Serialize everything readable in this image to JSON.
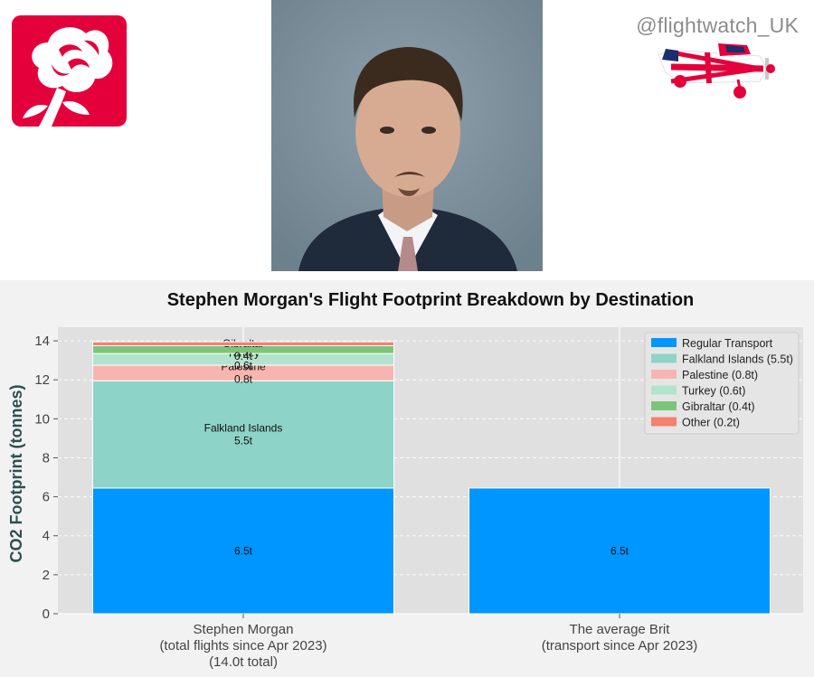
{
  "header": {
    "handle": "@flightwatch_UK",
    "logo_icon": "red-rose-icon",
    "plane_icon": "union-jack-plane-icon",
    "portrait_icon": "mp-portrait-photo"
  },
  "colors": {
    "regular_transport": "#0096ff",
    "falkland": "#8ed3c7",
    "palestine": "#f8b5b0",
    "turkey": "#b3e3cc",
    "gibraltar": "#7cc47a",
    "other": "#f4806e",
    "plot_bg": "#e0e0e0",
    "page_bg": "#f2f2f2",
    "brand_red": "#e4003b"
  },
  "chart_data": {
    "type": "bar",
    "stacked": true,
    "title": "Stephen Morgan's Flight Footprint Breakdown by Destination",
    "xlabel": "",
    "ylabel": "CO2 Footprint (tonnes)",
    "ylim": [
      0,
      14.7
    ],
    "yticks": [
      "0",
      "2",
      "4",
      "6",
      "8",
      "10",
      "12",
      "14"
    ],
    "grid": true,
    "legend_position": "top-right",
    "categories": [
      [
        "Stephen Morgan",
        "(total flights since Apr 2023)",
        "(14.0t total)"
      ],
      [
        "The average Brit",
        "(transport since Apr 2023)"
      ]
    ],
    "series": [
      {
        "name": "Regular Transport",
        "legend": "Regular Transport",
        "values": [
          6.45,
          6.45
        ],
        "labels": [
          "6.5t",
          "6.5t"
        ]
      },
      {
        "name": "Falkland Islands",
        "legend": "Falkland Islands (5.5t)",
        "values": [
          5.5,
          0
        ],
        "labels": [
          "Falkland Islands\n5.5t",
          ""
        ]
      },
      {
        "name": "Palestine",
        "legend": "Palestine (0.8t)",
        "values": [
          0.8,
          0
        ],
        "labels": [
          "Palestine\n0.8t",
          ""
        ]
      },
      {
        "name": "Turkey",
        "legend": "Turkey (0.6t)",
        "values": [
          0.6,
          0
        ],
        "labels": [
          "Turkey\n0.6t",
          ""
        ]
      },
      {
        "name": "Gibraltar",
        "legend": "Gibraltar (0.4t)",
        "values": [
          0.4,
          0
        ],
        "labels": [
          "Gibraltar\n0.4t",
          ""
        ]
      },
      {
        "name": "Other",
        "legend": "Other (0.2t)",
        "values": [
          0.2,
          0
        ],
        "labels": [
          "",
          ""
        ]
      }
    ]
  }
}
